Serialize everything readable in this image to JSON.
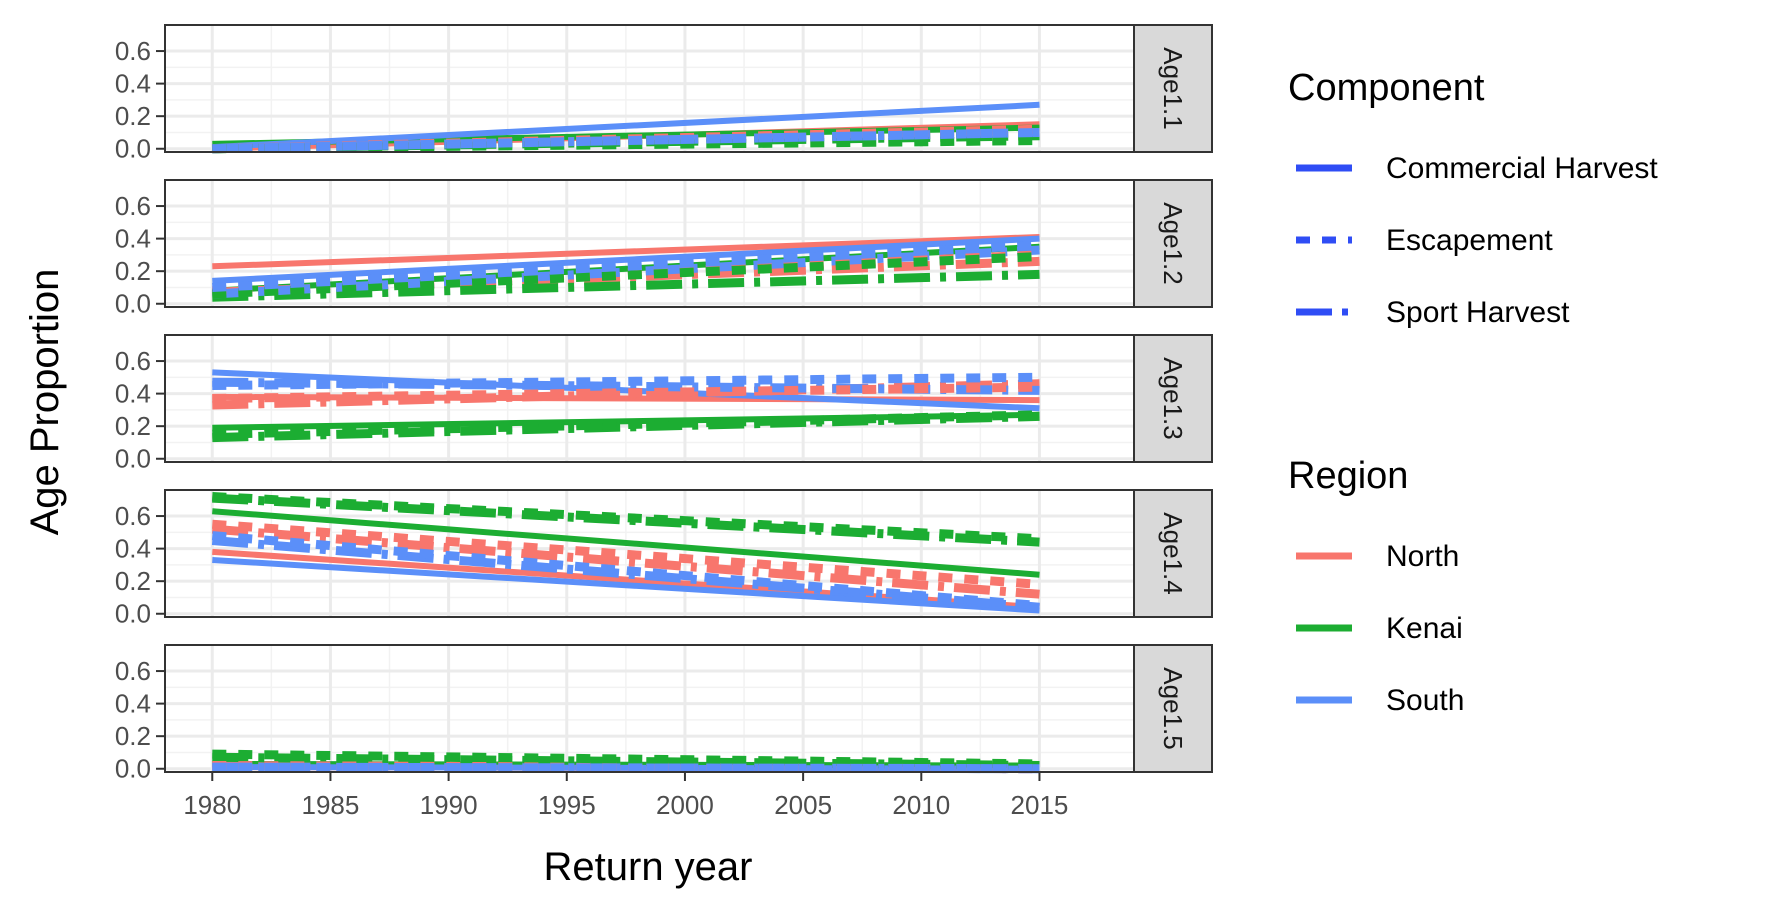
{
  "chart_data": {
    "type": "line",
    "xlabel": "Return year",
    "ylabel": "Age Proportion",
    "xlim": [
      1978,
      2019
    ],
    "ylim": [
      -0.02,
      0.76
    ],
    "x_ticks": [
      1980,
      1985,
      1990,
      1995,
      2000,
      2005,
      2010,
      2015
    ],
    "y_ticks": [
      "0.0",
      "0.2",
      "0.4",
      "0.6"
    ],
    "grid": true,
    "legend_placement": "right",
    "legends": {
      "component": {
        "title": "Component",
        "entries": [
          {
            "label": "Commercial Harvest",
            "linetype": "solid"
          },
          {
            "label": "Escapement",
            "linetype": "dotted"
          },
          {
            "label": "Sport Harvest",
            "linetype": "dashed"
          }
        ]
      },
      "region": {
        "title": "Region",
        "entries": [
          {
            "label": "North",
            "color": "#F8766D"
          },
          {
            "label": "Kenai",
            "color": "#1CAD32"
          },
          {
            "label": "South",
            "color": "#5B8FF9"
          }
        ]
      }
    },
    "legend_key_color": "#2F4DF5",
    "x": [
      1980,
      2015
    ],
    "facets": [
      {
        "label": "Age1.1",
        "series": [
          {
            "region": "North",
            "component": "Commercial Harvest",
            "values": [
              0.0,
              0.15
            ]
          },
          {
            "region": "North",
            "component": "Escapement",
            "values": [
              0.0,
              0.12
            ]
          },
          {
            "region": "North",
            "component": "Sport Harvest",
            "values": [
              0.0,
              0.1
            ]
          },
          {
            "region": "Kenai",
            "component": "Commercial Harvest",
            "values": [
              0.03,
              0.13
            ]
          },
          {
            "region": "Kenai",
            "component": "Escapement",
            "values": [
              0.0,
              0.05
            ]
          },
          {
            "region": "Kenai",
            "component": "Sport Harvest",
            "values": [
              0.0,
              0.08
            ]
          },
          {
            "region": "South",
            "component": "Commercial Harvest",
            "values": [
              0.01,
              0.27
            ]
          },
          {
            "region": "South",
            "component": "Escapement",
            "values": [
              0.0,
              0.1
            ]
          },
          {
            "region": "South",
            "component": "Sport Harvest",
            "values": [
              0.0,
              0.1
            ]
          }
        ]
      },
      {
        "label": "Age1.2",
        "series": [
          {
            "region": "North",
            "component": "Commercial Harvest",
            "values": [
              0.23,
              0.41
            ]
          },
          {
            "region": "North",
            "component": "Escapement",
            "values": [
              0.08,
              0.3
            ]
          },
          {
            "region": "North",
            "component": "Sport Harvest",
            "values": [
              0.07,
              0.26
            ]
          },
          {
            "region": "Kenai",
            "component": "Commercial Harvest",
            "values": [
              0.08,
              0.35
            ]
          },
          {
            "region": "Kenai",
            "component": "Escapement",
            "values": [
              0.06,
              0.29
            ]
          },
          {
            "region": "Kenai",
            "component": "Sport Harvest",
            "values": [
              0.04,
              0.18
            ]
          },
          {
            "region": "South",
            "component": "Commercial Harvest",
            "values": [
              0.14,
              0.4
            ]
          },
          {
            "region": "South",
            "component": "Escapement",
            "values": [
              0.1,
              0.36
            ]
          },
          {
            "region": "South",
            "component": "Sport Harvest",
            "values": [
              0.06,
              0.33
            ]
          }
        ]
      },
      {
        "label": "Age1.3",
        "series": [
          {
            "region": "North",
            "component": "Commercial Harvest",
            "values": [
              0.38,
              0.36
            ]
          },
          {
            "region": "North",
            "component": "Escapement",
            "values": [
              0.37,
              0.44
            ]
          },
          {
            "region": "North",
            "component": "Sport Harvest",
            "values": [
              0.33,
              0.46
            ]
          },
          {
            "region": "Kenai",
            "component": "Commercial Harvest",
            "values": [
              0.19,
              0.27
            ]
          },
          {
            "region": "Kenai",
            "component": "Escapement",
            "values": [
              0.15,
              0.27
            ]
          },
          {
            "region": "Kenai",
            "component": "Sport Harvest",
            "values": [
              0.13,
              0.26
            ]
          },
          {
            "region": "South",
            "component": "Commercial Harvest",
            "values": [
              0.53,
              0.31
            ]
          },
          {
            "region": "South",
            "component": "Escapement",
            "values": [
              0.45,
              0.5
            ]
          },
          {
            "region": "South",
            "component": "Sport Harvest",
            "values": [
              0.47,
              0.42
            ]
          }
        ]
      },
      {
        "label": "Age1.4",
        "series": [
          {
            "region": "North",
            "component": "Commercial Harvest",
            "values": [
              0.38,
              0.04
            ]
          },
          {
            "region": "North",
            "component": "Escapement",
            "values": [
              0.55,
              0.18
            ]
          },
          {
            "region": "North",
            "component": "Sport Harvest",
            "values": [
              0.52,
              0.12
            ]
          },
          {
            "region": "Kenai",
            "component": "Commercial Harvest",
            "values": [
              0.63,
              0.24
            ]
          },
          {
            "region": "Kenai",
            "component": "Escapement",
            "values": [
              0.72,
              0.46
            ]
          },
          {
            "region": "Kenai",
            "component": "Sport Harvest",
            "values": [
              0.71,
              0.44
            ]
          },
          {
            "region": "South",
            "component": "Commercial Harvest",
            "values": [
              0.33,
              0.02
            ]
          },
          {
            "region": "South",
            "component": "Escapement",
            "values": [
              0.48,
              0.05
            ]
          },
          {
            "region": "South",
            "component": "Sport Harvest",
            "values": [
              0.45,
              0.04
            ]
          }
        ]
      },
      {
        "label": "Age1.5",
        "series": [
          {
            "region": "North",
            "component": "Commercial Harvest",
            "values": [
              0.01,
              0.0
            ]
          },
          {
            "region": "North",
            "component": "Escapement",
            "values": [
              0.02,
              0.0
            ]
          },
          {
            "region": "North",
            "component": "Sport Harvest",
            "values": [
              0.02,
              0.01
            ]
          },
          {
            "region": "Kenai",
            "component": "Commercial Harvest",
            "values": [
              0.03,
              0.02
            ]
          },
          {
            "region": "Kenai",
            "component": "Escapement",
            "values": [
              0.09,
              0.03
            ]
          },
          {
            "region": "Kenai",
            "component": "Sport Harvest",
            "values": [
              0.07,
              0.02
            ]
          },
          {
            "region": "South",
            "component": "Commercial Harvest",
            "values": [
              0.01,
              0.0
            ]
          },
          {
            "region": "South",
            "component": "Escapement",
            "values": [
              0.01,
              0.0
            ]
          },
          {
            "region": "South",
            "component": "Sport Harvest",
            "values": [
              0.01,
              0.0
            ]
          }
        ]
      }
    ]
  }
}
